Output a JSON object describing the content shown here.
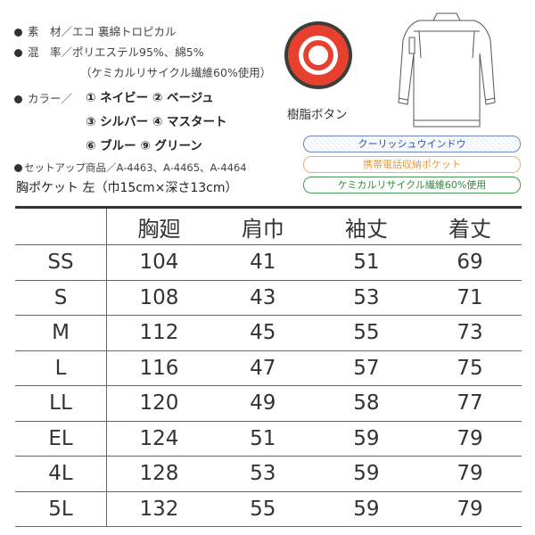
{
  "specs": {
    "material": "素　材／エコ 裏綿トロピカル",
    "blend": "混　率／ポリエステル95%、綿5%",
    "blend_note": "（ケミカルリサイクル繊維60%使用）",
    "color_label": "カラー／",
    "colors": [
      "① ネイビー ② ベージュ",
      "③ シルバー ④ マスタート",
      "⑥ ブルー ⑨ グリーン"
    ],
    "setup": "セットアップ商品／A-4463、A-4465、A-4464",
    "pocket": "胸ポケット 左（巾15cm×深さ13cm）"
  },
  "button_caption": "樹脂ボタン",
  "button_color": "#e8402f",
  "features": [
    {
      "label": "クーリッシュウインドウ",
      "color": "#2a4f9c"
    },
    {
      "label": "携帯電話収納ポケット",
      "color": "#e39a3c"
    },
    {
      "label": "ケミカルリサイクル繊維60%使用",
      "color": "#2f8a3a"
    }
  ],
  "size_table": {
    "headers": [
      "",
      "胸廻",
      "肩巾",
      "袖丈",
      "着丈"
    ],
    "rows": [
      [
        "SS",
        "104",
        "41",
        "51",
        "69"
      ],
      [
        "S",
        "108",
        "43",
        "53",
        "71"
      ],
      [
        "M",
        "112",
        "45",
        "55",
        "73"
      ],
      [
        "L",
        "116",
        "47",
        "57",
        "75"
      ],
      [
        "LL",
        "120",
        "49",
        "58",
        "77"
      ],
      [
        "EL",
        "124",
        "51",
        "59",
        "79"
      ],
      [
        "4L",
        "128",
        "53",
        "59",
        "79"
      ],
      [
        "5L",
        "132",
        "55",
        "59",
        "79"
      ]
    ]
  }
}
